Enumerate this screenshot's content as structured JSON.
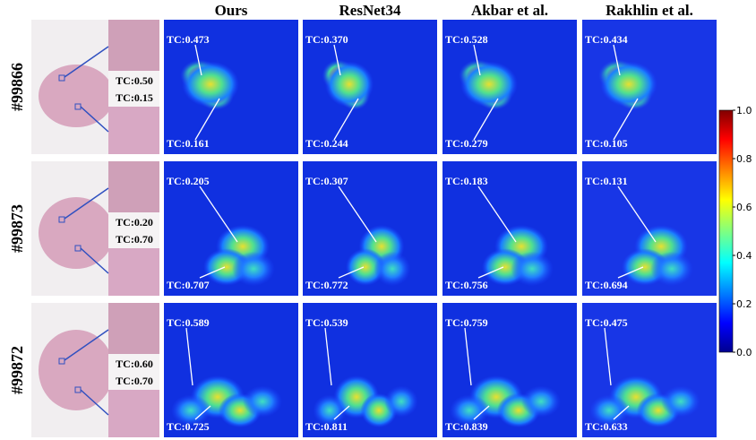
{
  "columns": [
    "Ours",
    "ResNet34",
    "Akbar et al.",
    "Rakhlin et al."
  ],
  "rows": [
    {
      "id": "#99866",
      "ground_truth": [
        "TC:0.50",
        "TC:0.15"
      ],
      "predictions": [
        [
          "TC:0.473",
          "TC:0.161"
        ],
        [
          "TC:0.370",
          "TC:0.244"
        ],
        [
          "TC:0.528",
          "TC:0.279"
        ],
        [
          "TC:0.434",
          "TC:0.105"
        ]
      ]
    },
    {
      "id": "#99873",
      "ground_truth": [
        "TC:0.20",
        "TC:0.70"
      ],
      "predictions": [
        [
          "TC:0.205",
          "TC:0.707"
        ],
        [
          "TC:0.307",
          "TC:0.772"
        ],
        [
          "TC:0.183",
          "TC:0.756"
        ],
        [
          "TC:0.131",
          "TC:0.694"
        ]
      ]
    },
    {
      "id": "#99872",
      "ground_truth": [
        "TC:0.60",
        "TC:0.70"
      ],
      "predictions": [
        [
          "TC:0.589",
          "TC:0.725"
        ],
        [
          "TC:0.539",
          "TC:0.811"
        ],
        [
          "TC:0.759",
          "TC:0.839"
        ],
        [
          "TC:0.475",
          "TC:0.633"
        ]
      ]
    }
  ],
  "colorbar": {
    "ticks": [
      "1.0",
      "0.8",
      "0.6",
      "0.4",
      "0.2",
      "0.0"
    ]
  }
}
